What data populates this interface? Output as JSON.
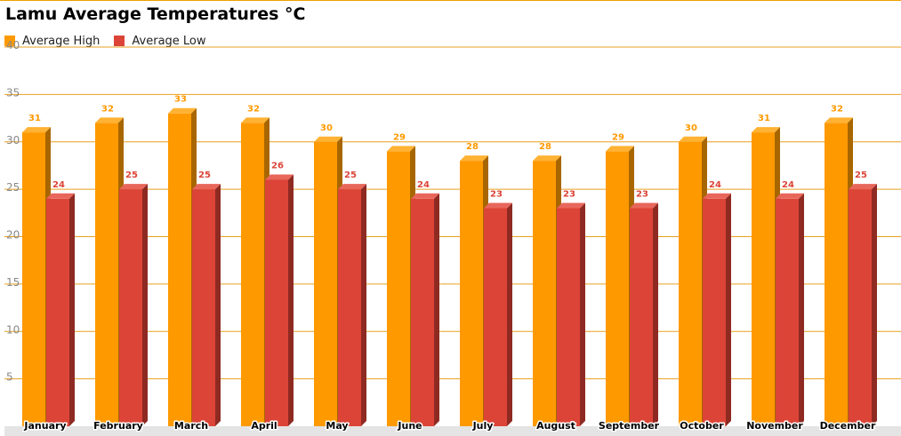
{
  "chart_data": {
    "type": "bar",
    "title": "Lamu Average Temperatures °C",
    "categories": [
      "January",
      "February",
      "March",
      "April",
      "May",
      "June",
      "July",
      "August",
      "September",
      "October",
      "November",
      "December"
    ],
    "series": [
      {
        "name": "Average High",
        "color": "#ff9900",
        "side_color": "#a86600",
        "top_color": "#ffb233",
        "values": [
          31,
          32,
          33,
          32,
          30,
          29,
          28,
          28,
          29,
          30,
          31,
          32
        ]
      },
      {
        "name": "Average Low",
        "color": "#dc4437",
        "side_color": "#8e2a22",
        "top_color": "#e8665a",
        "values": [
          24,
          25,
          25,
          26,
          25,
          24,
          23,
          23,
          23,
          24,
          24,
          25
        ]
      }
    ],
    "y_ticks": [
      5,
      10,
      15,
      20,
      25,
      30,
      35,
      40
    ],
    "ylim": [
      0,
      40
    ],
    "grid": true,
    "legend": "top-left",
    "grid_color": "#e8a020",
    "xlabel": "",
    "ylabel": ""
  }
}
